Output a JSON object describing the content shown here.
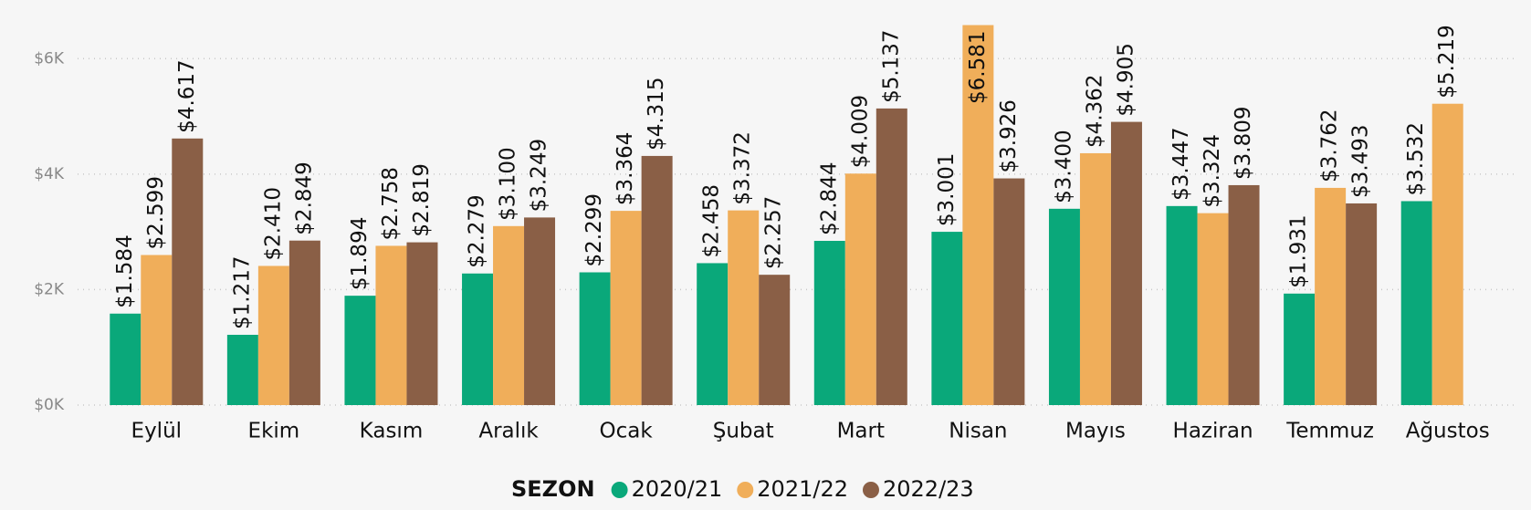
{
  "chart_data": {
    "type": "bar",
    "categories": [
      "Eylül",
      "Ekim",
      "Kasım",
      "Aralık",
      "Ocak",
      "Şubat",
      "Mart",
      "Nisan",
      "Mayıs",
      "Haziran",
      "Temmuz",
      "Ağustos"
    ],
    "series": [
      {
        "name": "2020/21",
        "color": "#0aa87a",
        "values": [
          1584,
          1217,
          1894,
          2279,
          2299,
          2458,
          2844,
          3001,
          3400,
          3447,
          1931,
          3532
        ],
        "value_labels": [
          "$1.584",
          "$1.217",
          "$1.894",
          "$2.279",
          "$2.299",
          "$2.458",
          "$2.844",
          "$3.001",
          "$3.400",
          "$3.447",
          "$1.931",
          "$3.532"
        ]
      },
      {
        "name": "2021/22",
        "color": "#f0ae5a",
        "values": [
          2599,
          2410,
          2758,
          3100,
          3364,
          3372,
          4009,
          6581,
          4362,
          3324,
          3762,
          5219
        ],
        "value_labels": [
          "$2.599",
          "$2.410",
          "$2.758",
          "$3.100",
          "$3.364",
          "$3.372",
          "$4.009",
          "$6.581",
          "$4.362",
          "$3.324",
          "$3.762",
          "$5.219"
        ]
      },
      {
        "name": "2022/23",
        "color": "#8a5f46",
        "values": [
          4617,
          2849,
          2819,
          3249,
          4315,
          2257,
          5137,
          3926,
          4905,
          3809,
          3493,
          null
        ],
        "value_labels": [
          "$4.617",
          "$2.849",
          "$2.819",
          "$3.249",
          "$4.315",
          "$2.257",
          "$5.137",
          "$3.926",
          "$4.905",
          "$3.809",
          "$3.493",
          null
        ]
      }
    ],
    "legend_title": "SEZON",
    "ylim": [
      0,
      7000
    ],
    "yticks": [
      {
        "value": 0,
        "label": "$0K"
      },
      {
        "value": 2000,
        "label": "$2K"
      },
      {
        "value": 4000,
        "label": "$4K"
      },
      {
        "value": 6000,
        "label": "$6K"
      }
    ],
    "grid": true
  }
}
